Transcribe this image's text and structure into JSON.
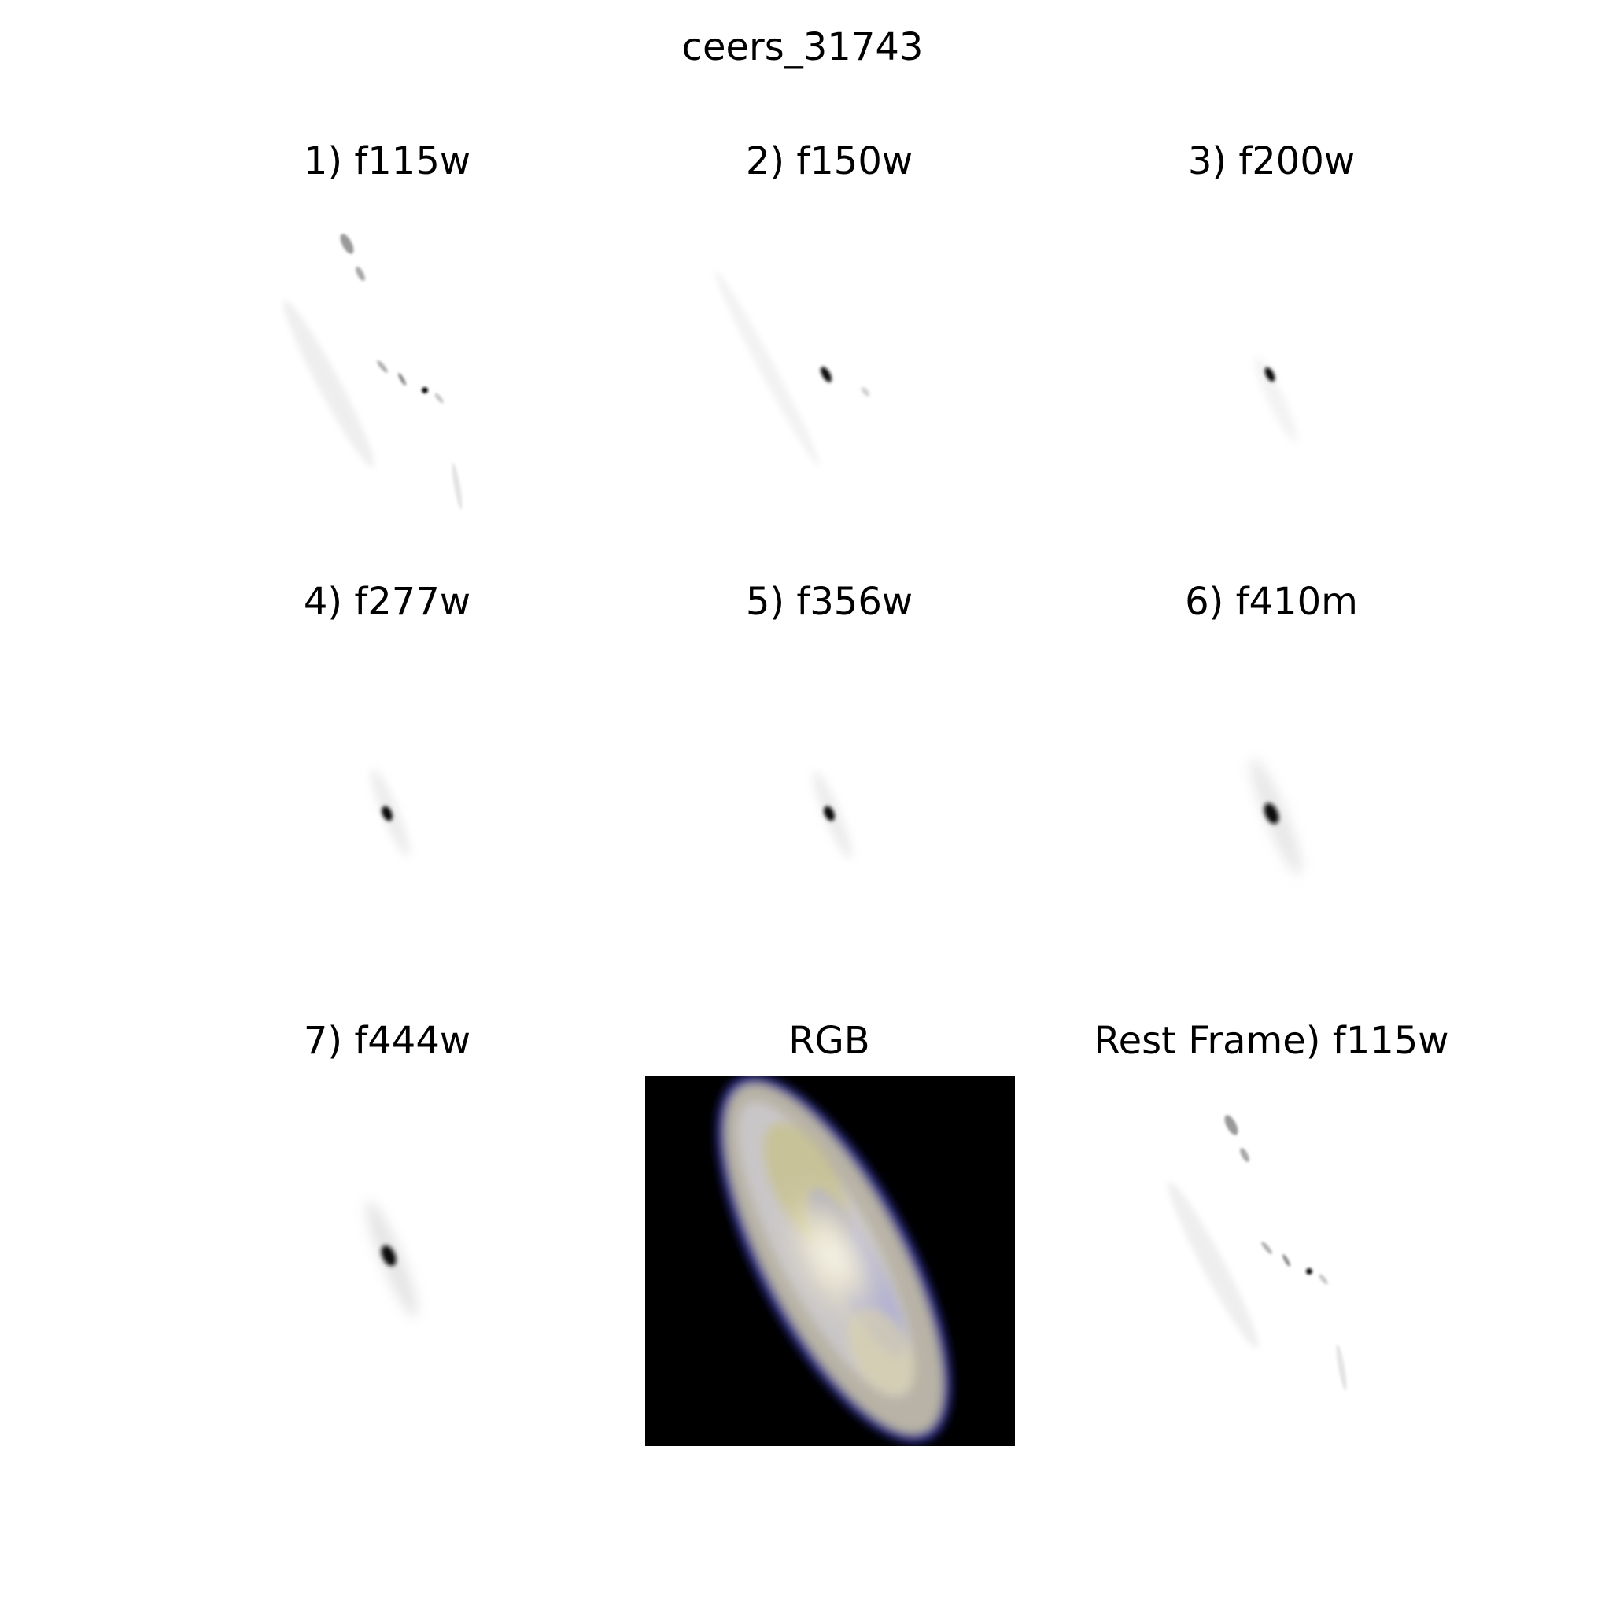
{
  "figure": {
    "title": "ceers_31743"
  },
  "panels": [
    {
      "label": "1) f115w",
      "kind": "grayscale"
    },
    {
      "label": "2) f150w",
      "kind": "grayscale"
    },
    {
      "label": "3) f200w",
      "kind": "grayscale"
    },
    {
      "label": "4) f277w",
      "kind": "grayscale"
    },
    {
      "label": "5) f356w",
      "kind": "grayscale"
    },
    {
      "label": "6) f410m",
      "kind": "grayscale"
    },
    {
      "label": "7) f444w",
      "kind": "grayscale"
    },
    {
      "label": "RGB",
      "kind": "color"
    },
    {
      "label": "Rest Frame) f115w",
      "kind": "grayscale"
    }
  ],
  "colors": {
    "background": "#ffffff",
    "rgb_background": "#000000",
    "source_core": "#000000"
  }
}
